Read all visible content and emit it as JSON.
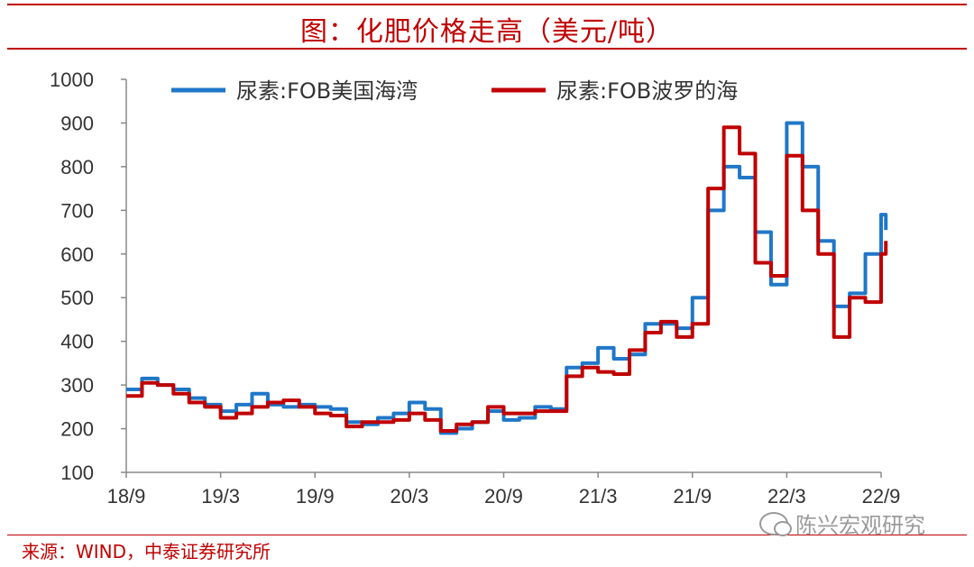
{
  "header": {
    "title": "图：化肥价格走高（美元/吨）"
  },
  "footer": {
    "source": "来源：WIND，中泰证券研究所",
    "watermark": "陈兴宏观研究"
  },
  "colors": {
    "accent": "#c00000",
    "series_blue": "#1f77c8",
    "series_red": "#c00000"
  },
  "chart_data": {
    "type": "line",
    "title": "图：化肥价格走高（美元/吨）",
    "xlabel": "",
    "ylabel": "",
    "ylim": [
      100,
      1000
    ],
    "yticks": [
      100,
      200,
      300,
      400,
      500,
      600,
      700,
      800,
      900,
      1000
    ],
    "xticks": [
      "18/9",
      "19/3",
      "19/9",
      "20/3",
      "20/9",
      "21/3",
      "21/9",
      "22/3",
      "22/9"
    ],
    "grid": false,
    "legend": "top",
    "series": [
      {
        "name": "尿素:FOB美国海湾",
        "color": "#1f77c8",
        "points": [
          [
            "18/9",
            290
          ],
          [
            "18/10",
            315
          ],
          [
            "18/11",
            300
          ],
          [
            "18/12",
            290
          ],
          [
            "19/1",
            270
          ],
          [
            "19/2",
            255
          ],
          [
            "19/3",
            240
          ],
          [
            "19/4",
            255
          ],
          [
            "19/5",
            280
          ],
          [
            "19/6",
            255
          ],
          [
            "19/7",
            250
          ],
          [
            "19/8",
            255
          ],
          [
            "19/9",
            250
          ],
          [
            "19/10",
            245
          ],
          [
            "19/11",
            215
          ],
          [
            "19/12",
            210
          ],
          [
            "20/1",
            225
          ],
          [
            "20/2",
            235
          ],
          [
            "20/3",
            260
          ],
          [
            "20/4",
            245
          ],
          [
            "20/5",
            190
          ],
          [
            "20/6",
            200
          ],
          [
            "20/7",
            215
          ],
          [
            "20/8",
            240
          ],
          [
            "20/9",
            220
          ],
          [
            "20/10",
            225
          ],
          [
            "20/11",
            250
          ],
          [
            "20/12",
            245
          ],
          [
            "21/1",
            340
          ],
          [
            "21/2",
            350
          ],
          [
            "21/3",
            385
          ],
          [
            "21/4",
            360
          ],
          [
            "21/5",
            370
          ],
          [
            "21/6",
            440
          ],
          [
            "21/7",
            440
          ],
          [
            "21/8",
            430
          ],
          [
            "21/9",
            500
          ],
          [
            "21/10",
            700
          ],
          [
            "21/11",
            800
          ],
          [
            "21/12",
            775
          ],
          [
            "22/1",
            650
          ],
          [
            "22/2",
            530
          ],
          [
            "22/3",
            900
          ],
          [
            "22/4",
            800
          ],
          [
            "22/5",
            630
          ],
          [
            "22/6",
            480
          ],
          [
            "22/7",
            510
          ],
          [
            "22/8",
            600
          ],
          [
            "22/9",
            690
          ],
          [
            "22/9",
            655
          ]
        ]
      },
      {
        "name": "尿素:FOB波罗的海",
        "color": "#c00000",
        "points": [
          [
            "18/9",
            275
          ],
          [
            "18/10",
            305
          ],
          [
            "18/11",
            300
          ],
          [
            "18/12",
            280
          ],
          [
            "19/1",
            260
          ],
          [
            "19/2",
            250
          ],
          [
            "19/3",
            225
          ],
          [
            "19/4",
            235
          ],
          [
            "19/5",
            250
          ],
          [
            "19/6",
            260
          ],
          [
            "19/7",
            265
          ],
          [
            "19/8",
            250
          ],
          [
            "19/9",
            235
          ],
          [
            "19/10",
            230
          ],
          [
            "19/11",
            205
          ],
          [
            "19/12",
            215
          ],
          [
            "20/1",
            215
          ],
          [
            "20/2",
            220
          ],
          [
            "20/3",
            235
          ],
          [
            "20/4",
            220
          ],
          [
            "20/5",
            195
          ],
          [
            "20/6",
            210
          ],
          [
            "20/7",
            215
          ],
          [
            "20/8",
            250
          ],
          [
            "20/9",
            235
          ],
          [
            "20/10",
            235
          ],
          [
            "20/11",
            240
          ],
          [
            "20/12",
            240
          ],
          [
            "21/1",
            320
          ],
          [
            "21/2",
            340
          ],
          [
            "21/3",
            330
          ],
          [
            "21/4",
            325
          ],
          [
            "21/5",
            380
          ],
          [
            "21/6",
            420
          ],
          [
            "21/7",
            445
          ],
          [
            "21/8",
            410
          ],
          [
            "21/9",
            440
          ],
          [
            "21/10",
            750
          ],
          [
            "21/11",
            890
          ],
          [
            "21/12",
            830
          ],
          [
            "22/1",
            580
          ],
          [
            "22/2",
            550
          ],
          [
            "22/3",
            825
          ],
          [
            "22/4",
            700
          ],
          [
            "22/5",
            600
          ],
          [
            "22/6",
            410
          ],
          [
            "22/7",
            500
          ],
          [
            "22/8",
            490
          ],
          [
            "22/9",
            600
          ],
          [
            "22/9",
            630
          ]
        ]
      }
    ]
  }
}
